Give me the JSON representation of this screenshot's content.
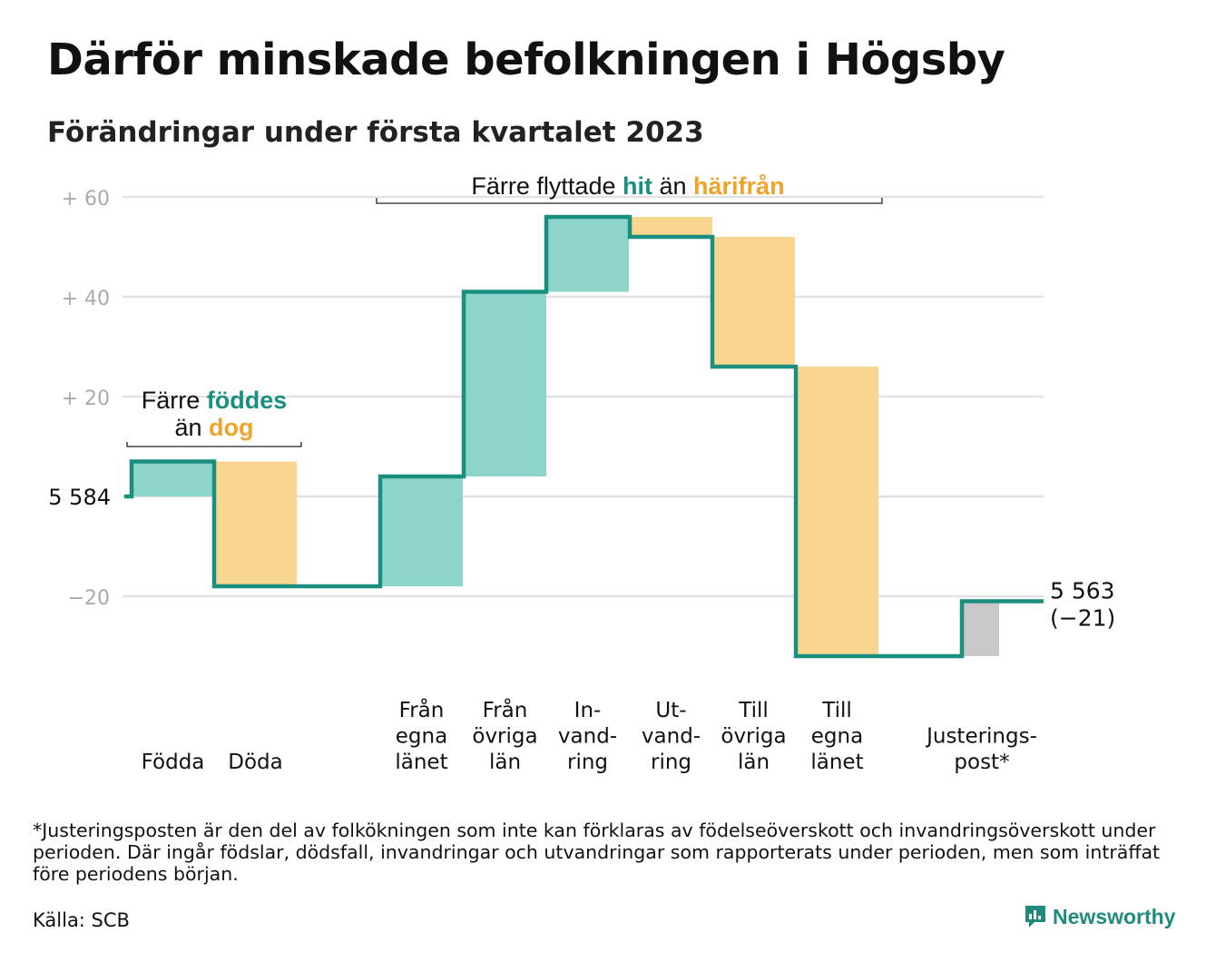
{
  "title": "Därför minskade befolkningen i Högsby",
  "subtitle": "Förändringar under första kvartalet 2023",
  "chart_data": {
    "type": "waterfall",
    "baseline": 5584,
    "ylim": [
      -33,
      62
    ],
    "y_ticks": [
      {
        "value": 60,
        "label": "+ 60"
      },
      {
        "value": 40,
        "label": "+ 40"
      },
      {
        "value": 20,
        "label": "+ 20"
      },
      {
        "value": 0,
        "label": "5 584"
      },
      {
        "value": -20,
        "label": "−20"
      }
    ],
    "steps": [
      {
        "label": [
          "Födda"
        ],
        "from": 0,
        "to": 7,
        "kind": "in"
      },
      {
        "label": [
          "Döda"
        ],
        "from": 7,
        "to": -18,
        "kind": "out"
      },
      {
        "label": [
          "Från",
          "egna",
          "länet"
        ],
        "from": -18,
        "to": 4,
        "kind": "in"
      },
      {
        "label": [
          "Från",
          "övriga",
          "län"
        ],
        "from": 4,
        "to": 41,
        "kind": "in"
      },
      {
        "label": [
          "In-",
          "vand-",
          "ring"
        ],
        "from": 41,
        "to": 56,
        "kind": "in"
      },
      {
        "label": [
          "Ut-",
          "vand-",
          "ring"
        ],
        "from": 56,
        "to": 52,
        "kind": "out"
      },
      {
        "label": [
          "Till",
          "övriga",
          "län"
        ],
        "from": 52,
        "to": 26,
        "kind": "out"
      },
      {
        "label": [
          "Till",
          "egna",
          "länet"
        ],
        "from": 26,
        "to": -32,
        "kind": "out"
      },
      {
        "label": [
          "Justerings-",
          "post*"
        ],
        "from": -32,
        "to": -21,
        "kind": "adjust"
      }
    ],
    "end_value": "5 563",
    "end_change": "(−21)",
    "annotations": [
      {
        "parts": [
          {
            "text": "Färre ",
            "style": "plain"
          },
          {
            "text": "föddes",
            "style": "teal"
          }
        ],
        "parts2": [
          {
            "text": "än ",
            "style": "plain"
          },
          {
            "text": "dog",
            "style": "orange"
          }
        ]
      },
      {
        "parts": [
          {
            "text": "Färre flyttade ",
            "style": "plain"
          },
          {
            "text": "hit",
            "style": "teal"
          },
          {
            "text": " än ",
            "style": "plain"
          },
          {
            "text": "härifrån",
            "style": "orange"
          }
        ]
      }
    ]
  },
  "colors": {
    "line": "#1a8f80",
    "in_fill": "#8dd5cb",
    "out_fill": "#f9d58f",
    "adjust_fill": "#c8c8c8",
    "grid": "#e2e2e2",
    "tick_text": "#aaaaaa",
    "teal_text": "#1a8f80",
    "orange_text": "#f0a32b"
  },
  "footnote": "*Justeringsposten är den del av folkökningen som inte kan förklaras av födelseöverskott och invandringsöverskott under perioden. Där ingår födslar, dödsfall, invandringar och utvandringar som rapporterats under perioden, men som inträffat före periodens början.",
  "source": "Källa: SCB",
  "brand": {
    "name": "Newsworthy",
    "icon": "bar-chart-icon"
  }
}
